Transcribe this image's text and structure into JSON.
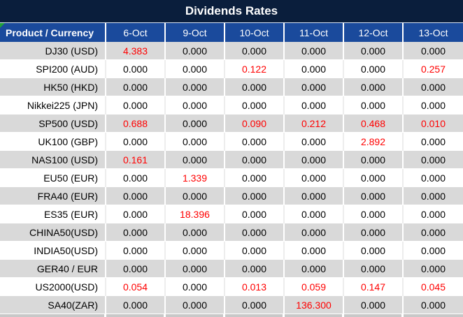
{
  "title": "Dividends Rates",
  "table": {
    "header": [
      "Product / Currency",
      "6-Oct",
      "9-Oct",
      "10-Oct",
      "11-Oct",
      "12-Oct",
      "13-Oct"
    ],
    "rows": [
      {
        "product": "DJ30 (USD)",
        "values": [
          "4.383",
          "0.000",
          "0.000",
          "0.000",
          "0.000",
          "0.000"
        ],
        "highlights": [
          true,
          false,
          false,
          false,
          false,
          false
        ]
      },
      {
        "product": "SPI200 (AUD)",
        "values": [
          "0.000",
          "0.000",
          "0.122",
          "0.000",
          "0.000",
          "0.257"
        ],
        "highlights": [
          false,
          false,
          true,
          false,
          false,
          true
        ]
      },
      {
        "product": "HK50 (HKD)",
        "values": [
          "0.000",
          "0.000",
          "0.000",
          "0.000",
          "0.000",
          "0.000"
        ],
        "highlights": [
          false,
          false,
          false,
          false,
          false,
          false
        ]
      },
      {
        "product": "Nikkei225 (JPN)",
        "values": [
          "0.000",
          "0.000",
          "0.000",
          "0.000",
          "0.000",
          "0.000"
        ],
        "highlights": [
          false,
          false,
          false,
          false,
          false,
          false
        ]
      },
      {
        "product": "SP500 (USD)",
        "values": [
          "0.688",
          "0.000",
          "0.090",
          "0.212",
          "0.468",
          "0.010"
        ],
        "highlights": [
          true,
          false,
          true,
          true,
          true,
          true
        ]
      },
      {
        "product": "UK100 (GBP)",
        "values": [
          "0.000",
          "0.000",
          "0.000",
          "0.000",
          "2.892",
          "0.000"
        ],
        "highlights": [
          false,
          false,
          false,
          false,
          true,
          false
        ]
      },
      {
        "product": "NAS100 (USD)",
        "values": [
          "0.161",
          "0.000",
          "0.000",
          "0.000",
          "0.000",
          "0.000"
        ],
        "highlights": [
          true,
          false,
          false,
          false,
          false,
          false
        ]
      },
      {
        "product": "EU50 (EUR)",
        "values": [
          "0.000",
          "1.339",
          "0.000",
          "0.000",
          "0.000",
          "0.000"
        ],
        "highlights": [
          false,
          true,
          false,
          false,
          false,
          false
        ]
      },
      {
        "product": "FRA40 (EUR)",
        "values": [
          "0.000",
          "0.000",
          "0.000",
          "0.000",
          "0.000",
          "0.000"
        ],
        "highlights": [
          false,
          false,
          false,
          false,
          false,
          false
        ]
      },
      {
        "product": "ES35 (EUR)",
        "values": [
          "0.000",
          "18.396",
          "0.000",
          "0.000",
          "0.000",
          "0.000"
        ],
        "highlights": [
          false,
          true,
          false,
          false,
          false,
          false
        ]
      },
      {
        "product": "CHINA50(USD)",
        "values": [
          "0.000",
          "0.000",
          "0.000",
          "0.000",
          "0.000",
          "0.000"
        ],
        "highlights": [
          false,
          false,
          false,
          false,
          false,
          false
        ]
      },
      {
        "product": "INDIA50(USD)",
        "values": [
          "0.000",
          "0.000",
          "0.000",
          "0.000",
          "0.000",
          "0.000"
        ],
        "highlights": [
          false,
          false,
          false,
          false,
          false,
          false
        ]
      },
      {
        "product": "GER40 / EUR",
        "values": [
          "0.000",
          "0.000",
          "0.000",
          "0.000",
          "0.000",
          "0.000"
        ],
        "highlights": [
          false,
          false,
          false,
          false,
          false,
          false
        ]
      },
      {
        "product": "US2000(USD)",
        "values": [
          "0.054",
          "0.000",
          "0.013",
          "0.059",
          "0.147",
          "0.045"
        ],
        "highlights": [
          true,
          false,
          true,
          true,
          true,
          true
        ]
      },
      {
        "product": "SA40(ZAR)",
        "values": [
          "0.000",
          "0.000",
          "0.000",
          "136.300",
          "0.000",
          "0.000"
        ],
        "highlights": [
          false,
          false,
          false,
          true,
          false,
          false
        ]
      }
    ]
  },
  "colors": {
    "title_bg": "#0a1e3c",
    "header_bg": "#1a4a9c",
    "header_text": "#ffffff",
    "row_gray": "#d9d9d9",
    "row_white": "#ffffff",
    "value_text": "#000000",
    "value_highlight_red": "#ff0000",
    "corner_flag_green": "#21a038",
    "bottom_strip_gray": "#c8c8c8"
  }
}
